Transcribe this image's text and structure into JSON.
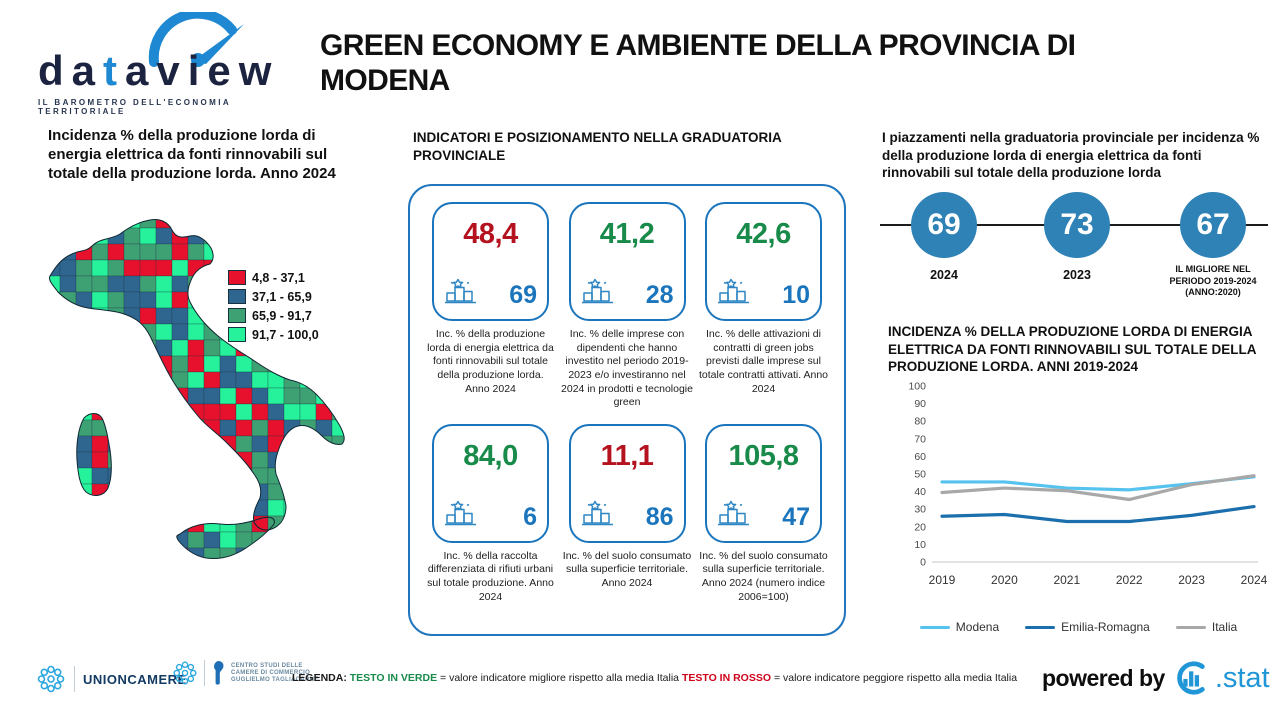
{
  "brand": {
    "wordmark_prefix": "da",
    "wordmark_t": "t",
    "wordmark_suffix": "aview",
    "tagline": "IL BAROMETRO DELL'ECONOMIA TERRITORIALE"
  },
  "header": {
    "title": "GREEN ECONOMY E AMBIENTE DELLA PROVINCIA DI MODENA"
  },
  "map_section": {
    "title": "Incidenza % della produzione lorda di energia elettrica da fonti rinnovabili sul totale della produzione lorda. Anno 2024",
    "legend": [
      {
        "label": "4,8 - 37,1",
        "color": "#e8112d"
      },
      {
        "label": "37,1 - 65,9",
        "color": "#2f6690"
      },
      {
        "label": "65,9 - 91,7",
        "color": "#3ea173"
      },
      {
        "label": "91,7 - 100,0",
        "color": "#25f29a"
      }
    ],
    "outline_color": "#0e2733"
  },
  "indicators": {
    "title": "INDICATORI E POSIZIONAMENTO NELLA GRADUATORIA PROVINCIALE",
    "accent_color": "#1b75bc",
    "cards": [
      {
        "value": "48,4",
        "value_color": "#b5121f",
        "rank": "69",
        "description": "Inc. % della produzione lorda di energia elettrica da fonti rinnovabili sul totale della produzione lorda. Anno 2024"
      },
      {
        "value": "41,2",
        "value_color": "#188a4a",
        "rank": "28",
        "description": "Inc. % delle imprese con dipendenti che hanno investito nel periodo 2019-2023 e/o investiranno nel 2024 in prodotti e tecnologie green"
      },
      {
        "value": "42,6",
        "value_color": "#188a4a",
        "rank": "10",
        "description": "Inc. % delle attivazioni di contratti di green jobs previsti dalle imprese sul totale contratti attivati. Anno 2024"
      },
      {
        "value": "84,0",
        "value_color": "#188a4a",
        "rank": "6",
        "description": "Inc. % della raccolta differenziata di rifiuti urbani sul totale produzione. Anno 2024"
      },
      {
        "value": "11,1",
        "value_color": "#b5121f",
        "rank": "86",
        "description": "Inc. % del suolo consumato sulla superficie territoriale. Anno 2024"
      },
      {
        "value": "105,8",
        "value_color": "#188a4a",
        "rank": "47",
        "description": "Inc. % del suolo consumato sulla superficie territoriale. Anno 2024 (numero indice 2006=100)"
      }
    ]
  },
  "rankings": {
    "title": "I piazzamenti nella graduatoria provinciale per incidenza % della produzione lorda di energia elettrica da fonti rinnovabili sul totale della produzione lorda",
    "circle_color": "#2e82b5",
    "items": [
      {
        "value": "69",
        "label": "2024"
      },
      {
        "value": "73",
        "label": "2023"
      },
      {
        "value": "67",
        "label": "IL MIGLIORE NEL PERIODO 2019-2024 (ANNO:2020)"
      }
    ]
  },
  "chart_data": {
    "type": "line",
    "title": "INCIDENZA % DELLA PRODUZIONE LORDA DI ENERGIA ELETTRICA DA FONTI RINNOVABILI SUL TOTALE DELLA PRODUZIONE LORDA. ANNI 2019-2024",
    "x": [
      2019,
      2020,
      2021,
      2022,
      2023,
      2024
    ],
    "series": [
      {
        "name": "Modena",
        "color": "#56c2ee",
        "values": [
          45.5,
          45.5,
          42.0,
          41.0,
          44.5,
          48.4
        ]
      },
      {
        "name": "Emilia-Romagna",
        "color": "#1c6fad",
        "values": [
          26.0,
          27.0,
          23.0,
          23.0,
          26.5,
          31.5
        ]
      },
      {
        "name": "Italia",
        "color": "#a8a8a8",
        "values": [
          39.5,
          42.0,
          40.5,
          35.5,
          44.0,
          49.0
        ]
      }
    ],
    "ylim": [
      0,
      100
    ],
    "ytick_step": 10,
    "grid": false,
    "legend_position": "bottom"
  },
  "footer": {
    "unioncamere": "UNIONCAMERE",
    "centro_studi_lines": [
      "CENTRO STUDI DELLE",
      "CAMERE DI COMMERCIO",
      "GUGLIELMO TAGLIACARNE"
    ],
    "legenda_label": "LEGENDA:",
    "green_term": "TESTO IN VERDE",
    "green_desc": "= valore indicatore migliore rispetto alla media Italia",
    "red_term": "TESTO IN ROSSO",
    "red_desc": "= valore indicatore peggiore rispetto alla media Italia",
    "green_color": "#188a4a",
    "red_color": "#d0021b",
    "powered_by": "powered by",
    "stat_label": ".stat",
    "stat_color": "#2196d6"
  }
}
